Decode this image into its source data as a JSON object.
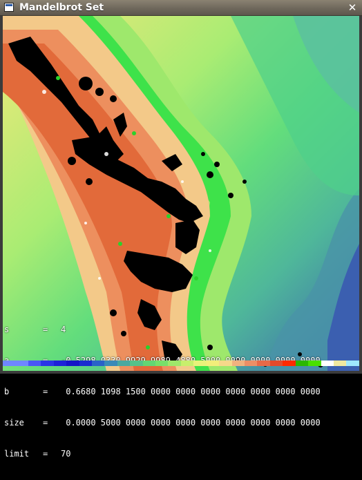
{
  "window": {
    "title": "Mandelbrot Set",
    "close_icon": "close-icon",
    "app_icon": "window-icon"
  },
  "readout": {
    "s": {
      "label": "s",
      "eq": "=",
      "value": "4"
    },
    "a": {
      "label": "a",
      "eq": "=",
      "value": "-0.5298 0330 9929 9989 4880 5000 0000 0000 0000 0000"
    },
    "b": {
      "label": "b",
      "eq": "=",
      "value": " 0.6680 1098 1500 0000 0000 0000 0000 0000 0000 0000"
    },
    "size": {
      "label": "size",
      "eq": "=",
      "value": " 0.0000 5000 0000 0000 0000 0000 0000 0000 0000 0000"
    },
    "limit": {
      "label": "limit",
      "eq": "=",
      "value": "70"
    }
  },
  "palette_colors": [
    "#6f86ff",
    "#6f86ff",
    "#4a57f5",
    "#2a35e6",
    "#1d22d8",
    "#1414c8",
    "#1a2bd0",
    "#2a62c8",
    "#3a8ab8",
    "#4aa8a0",
    "#55c28a",
    "#63d674",
    "#78e06a",
    "#9fe86a",
    "#c8ef6c",
    "#e8f27a",
    "#f3ee7a",
    "#f6d88a",
    "#f0b27f",
    "#ec8f66",
    "#e86a48",
    "#e24a2c",
    "#ff2a00",
    "#2bb800",
    "#49e000",
    "#ffffff",
    "#f0e8a0",
    "#9fe8ff"
  ]
}
